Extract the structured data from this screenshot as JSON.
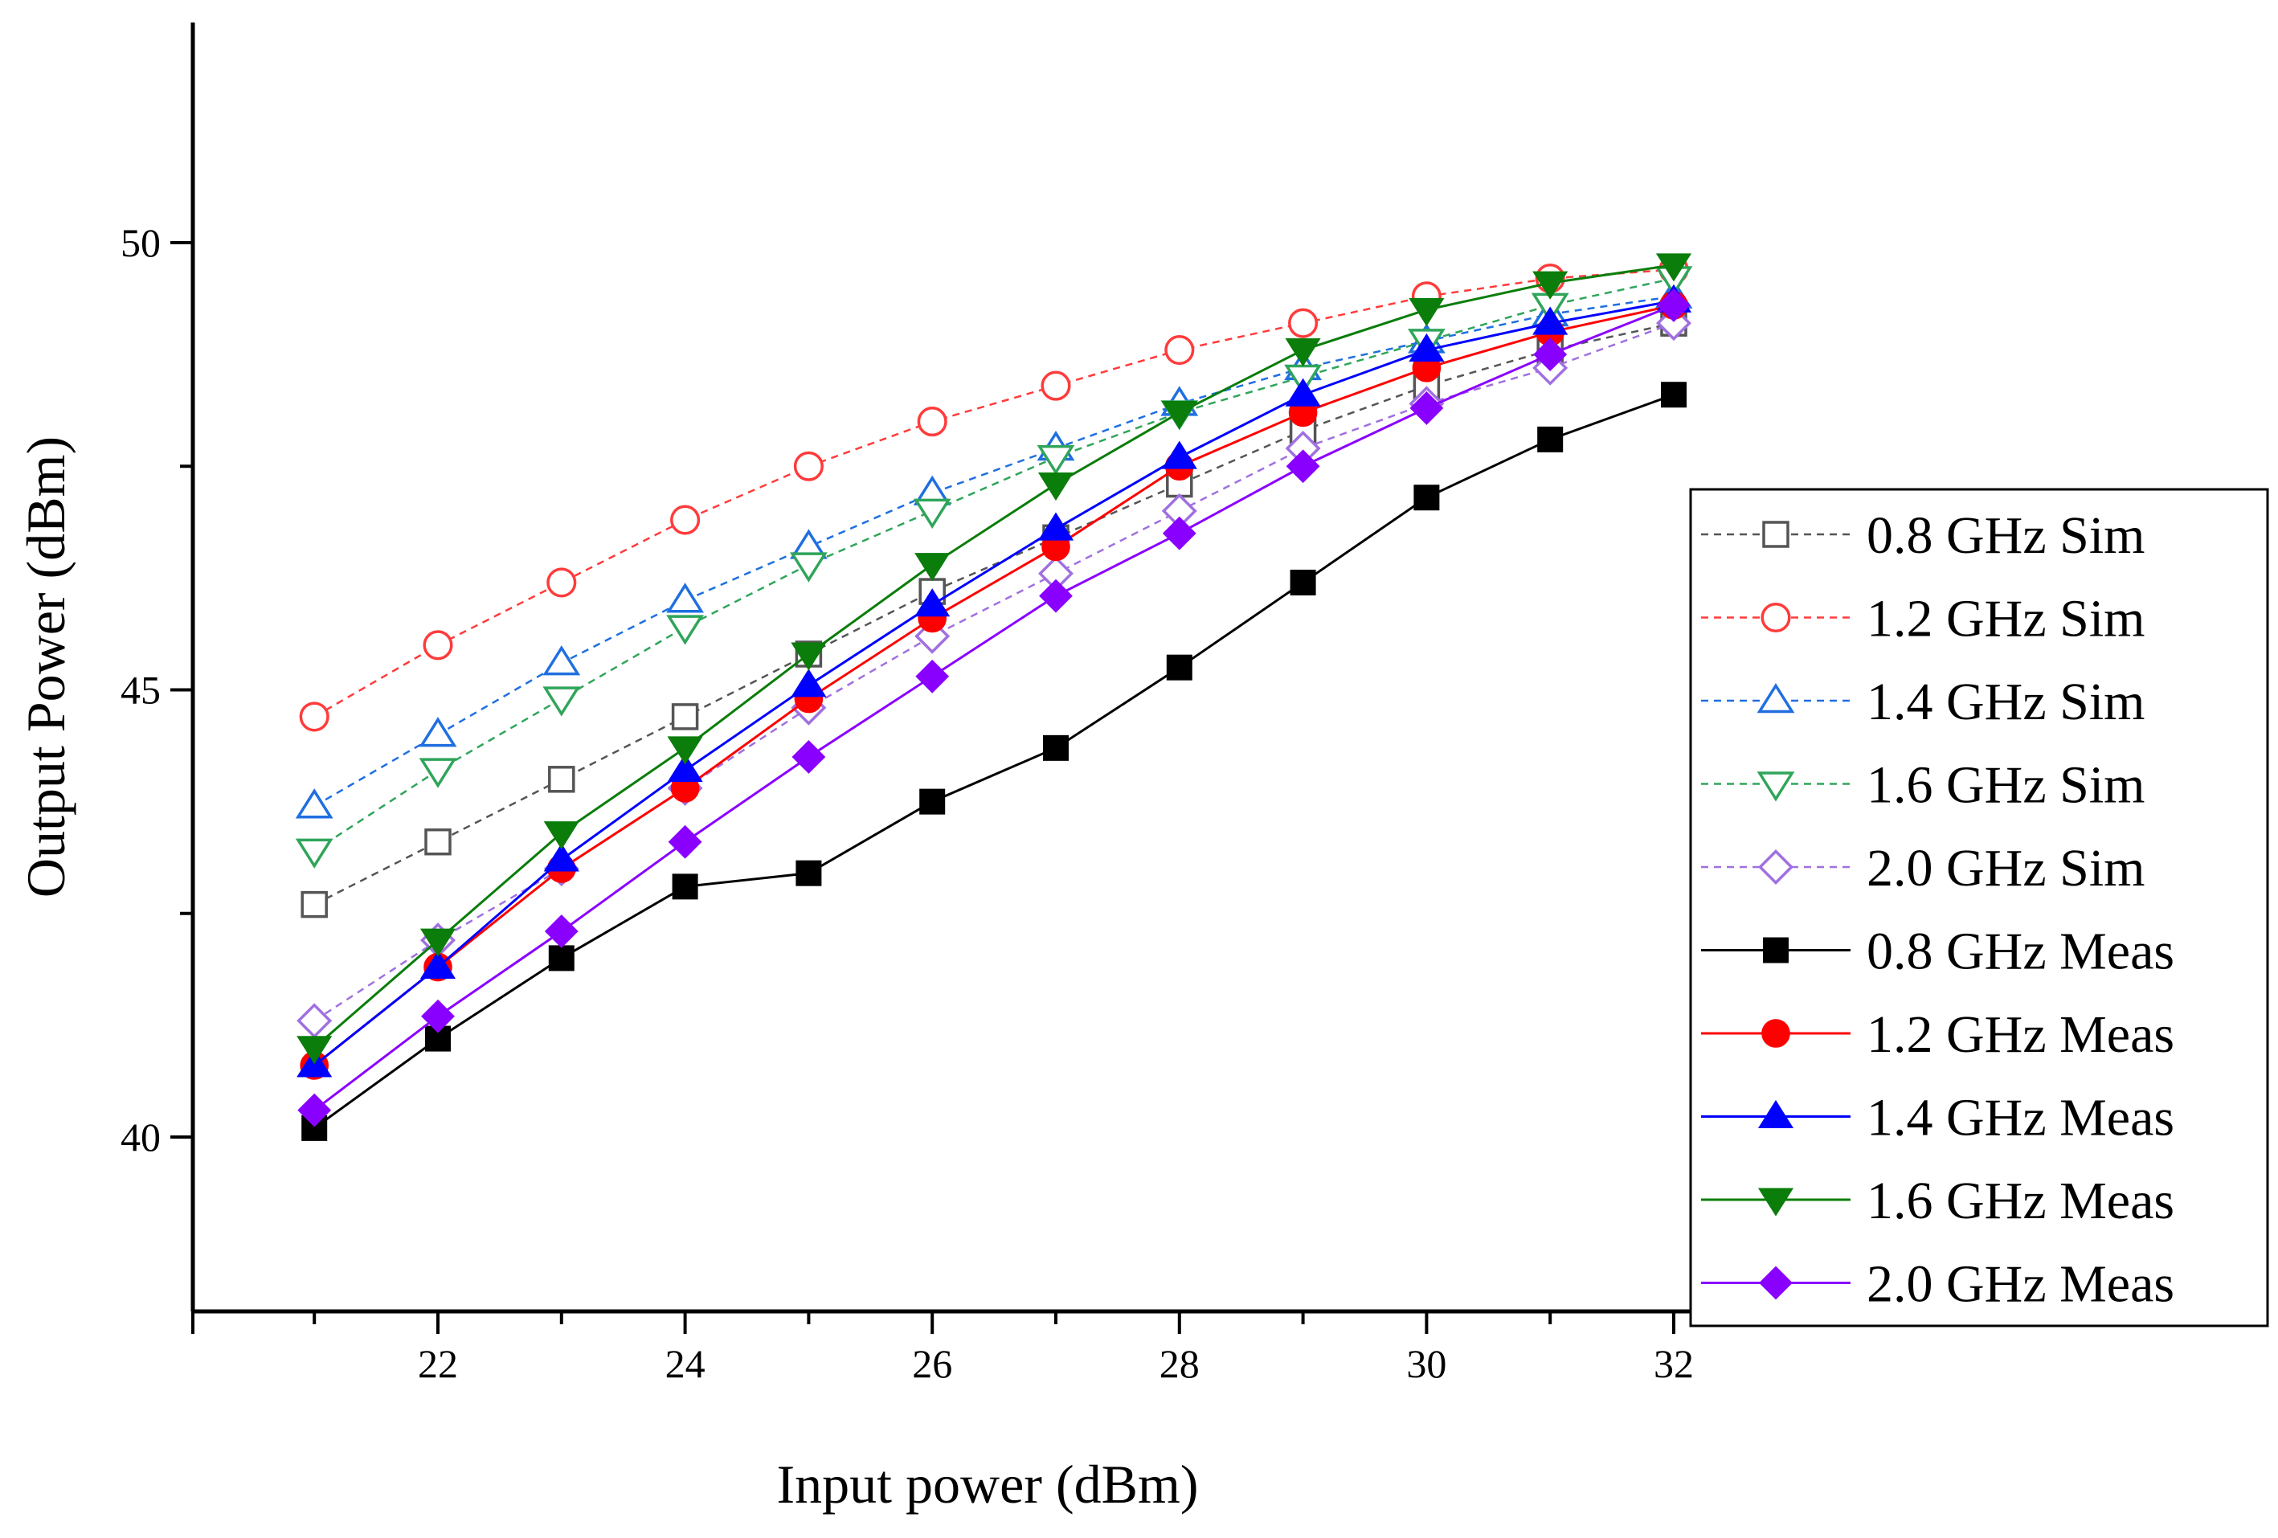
{
  "chart_data": {
    "type": "line",
    "title": "",
    "xlabel": "Input power (dBm)",
    "ylabel": "Output Power (dBm)",
    "xlim": [
      20.0,
      33.0
    ],
    "ylim": [
      38.0,
      52.5
    ],
    "xticks": [
      22,
      24,
      26,
      28,
      30,
      32
    ],
    "yticks": [
      40,
      45,
      50
    ],
    "grid": false,
    "legend_position": "right",
    "x": [
      21,
      22,
      23,
      24,
      25,
      26,
      27,
      28,
      29,
      30,
      31,
      32
    ],
    "series": [
      {
        "name": "0.8 GHz Sim",
        "color": "#555555",
        "dashed": true,
        "marker": "square",
        "filled": false,
        "values": [
          42.6,
          43.3,
          44.0,
          44.7,
          45.4,
          46.1,
          46.7,
          47.3,
          47.9,
          48.4,
          48.8,
          49.1
        ]
      },
      {
        "name": "1.2 GHz Sim",
        "color": "#ff3b3b",
        "dashed": true,
        "marker": "circle",
        "filled": false,
        "values": [
          44.7,
          45.5,
          46.2,
          46.9,
          47.5,
          48.0,
          48.4,
          48.8,
          49.1,
          49.4,
          49.6,
          49.7
        ]
      },
      {
        "name": "1.4 GHz Sim",
        "color": "#1f6fe0",
        "dashed": true,
        "marker": "triangle-up",
        "filled": false,
        "values": [
          43.7,
          44.5,
          45.3,
          46.0,
          46.6,
          47.2,
          47.7,
          48.2,
          48.6,
          48.9,
          49.2,
          49.4
        ]
      },
      {
        "name": "1.6 GHz Sim",
        "color": "#2fa55a",
        "dashed": true,
        "marker": "triangle-down",
        "filled": false,
        "values": [
          43.2,
          44.1,
          44.9,
          45.7,
          46.4,
          47.0,
          47.6,
          48.1,
          48.5,
          48.9,
          49.3,
          49.6
        ]
      },
      {
        "name": "2.0 GHz Sim",
        "color": "#a070e0",
        "dashed": true,
        "marker": "diamond",
        "filled": false,
        "values": [
          41.3,
          42.2,
          43.0,
          43.9,
          44.8,
          45.6,
          46.3,
          47.0,
          47.7,
          48.2,
          48.6,
          49.1
        ]
      },
      {
        "name": "0.8 GHz Meas",
        "color": "#000000",
        "dashed": false,
        "marker": "square",
        "filled": true,
        "values": [
          40.1,
          41.1,
          42.0,
          42.8,
          42.95,
          43.75,
          44.35,
          45.25,
          46.2,
          47.15,
          47.8,
          48.3
        ]
      },
      {
        "name": "1.2 GHz Meas",
        "color": "#ff0000",
        "dashed": false,
        "marker": "circle",
        "filled": true,
        "values": [
          40.8,
          41.9,
          43.0,
          43.9,
          44.9,
          45.8,
          46.6,
          47.5,
          48.1,
          48.6,
          49.0,
          49.3
        ]
      },
      {
        "name": "1.4 GHz Meas",
        "color": "#0000ff",
        "dashed": false,
        "marker": "triangle-up",
        "filled": true,
        "values": [
          40.8,
          41.9,
          43.1,
          44.1,
          45.05,
          45.95,
          46.8,
          47.6,
          48.3,
          48.8,
          49.1,
          49.35
        ]
      },
      {
        "name": "1.6 GHz Meas",
        "color": "#0a7d0a",
        "dashed": false,
        "marker": "triangle-down",
        "filled": true,
        "values": [
          41.0,
          42.2,
          43.4,
          44.35,
          45.4,
          46.4,
          47.3,
          48.1,
          48.8,
          49.25,
          49.55,
          49.75
        ]
      },
      {
        "name": "2.0 GHz Meas",
        "color": "#8a00ff",
        "dashed": false,
        "marker": "diamond",
        "filled": true,
        "values": [
          40.3,
          41.35,
          42.3,
          43.3,
          44.25,
          45.15,
          46.05,
          46.75,
          47.5,
          48.15,
          48.75,
          49.3
        ]
      }
    ]
  }
}
